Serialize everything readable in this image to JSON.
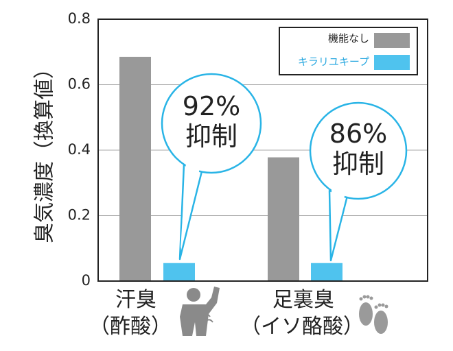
{
  "chart_data": {
    "type": "bar",
    "ylabel": "臭気濃度（換算値）",
    "ylim": [
      0,
      0.8
    ],
    "yticks": [
      "0",
      "0.2",
      "0.4",
      "0.6",
      "0.8"
    ],
    "grid": true,
    "legend_position": "top-right",
    "categories": [
      {
        "line1": "汗臭",
        "line2": "（酢酸）"
      },
      {
        "line1": "足裏臭",
        "line2": "（イソ酪酸）"
      }
    ],
    "series": [
      {
        "name": "機能なし",
        "color": "#999999",
        "values": [
          0.685,
          0.378
        ]
      },
      {
        "name": "キラリユキープ",
        "color": "#4fc3ee",
        "values": [
          0.055,
          0.055
        ]
      }
    ],
    "annotations": [
      {
        "category": 0,
        "line1": "92%",
        "line2": "抑制"
      },
      {
        "category": 1,
        "line1": "86%",
        "line2": "抑制"
      }
    ],
    "colors": {
      "callout_stroke": "#29b4e6",
      "axis": "#222222",
      "grid": "#aaaaaa",
      "legend_text_blue": "#29a8e0"
    }
  }
}
